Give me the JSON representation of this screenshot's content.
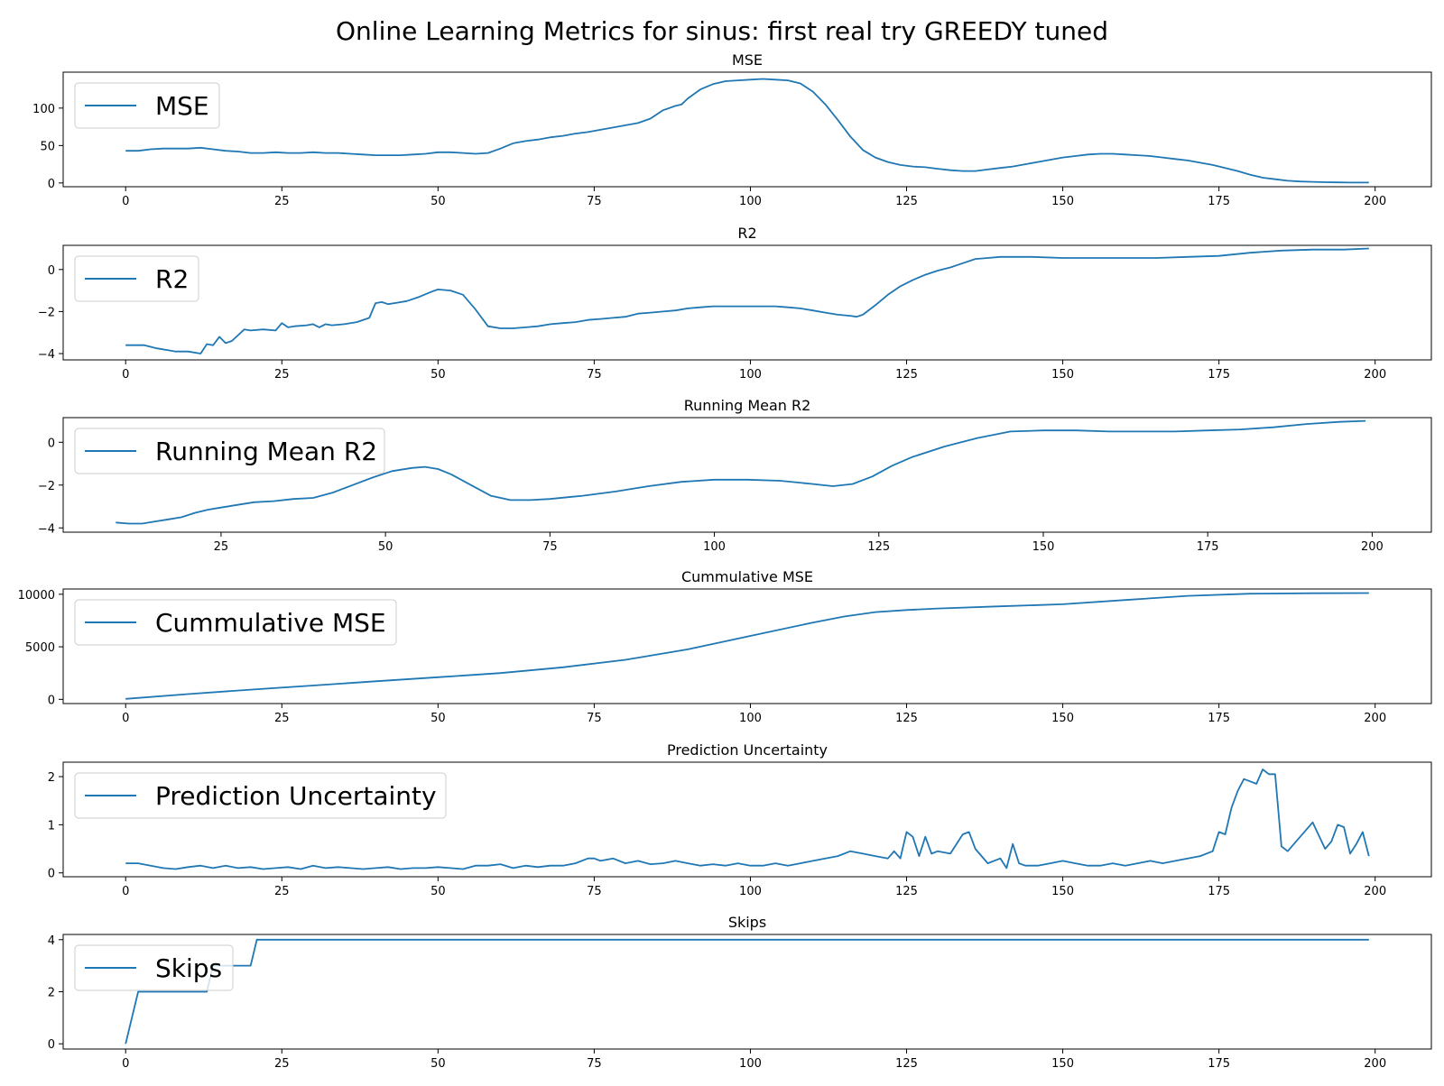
{
  "title": "Online Learning Metrics for sinus: first real try GREEDY tuned",
  "colors": {
    "series": "#1f77b4",
    "axis": "#000000",
    "legend_border": "#cccccc"
  },
  "chart_data": [
    {
      "type": "line",
      "title": "MSE",
      "xlabel": "",
      "ylabel": "",
      "xlim": [
        -10,
        209
      ],
      "ylim": [
        -5,
        148
      ],
      "xticks": [
        0,
        25,
        50,
        75,
        100,
        125,
        150,
        175,
        200
      ],
      "yticks": [
        0,
        50,
        100
      ],
      "ytick_labels": [
        "0",
        "50",
        "100"
      ],
      "legend": "top-left",
      "grid": false,
      "series": [
        {
          "name": "MSE",
          "x": [
            0,
            2,
            4,
            6,
            8,
            10,
            12,
            14,
            16,
            18,
            20,
            22,
            24,
            26,
            28,
            30,
            32,
            34,
            36,
            38,
            40,
            42,
            44,
            46,
            48,
            50,
            52,
            54,
            56,
            58,
            60,
            62,
            64,
            66,
            68,
            70,
            72,
            74,
            76,
            78,
            80,
            82,
            84,
            86,
            88,
            89,
            90,
            92,
            94,
            96,
            98,
            100,
            102,
            104,
            106,
            108,
            110,
            112,
            114,
            116,
            118,
            120,
            122,
            124,
            126,
            128,
            130,
            132,
            134,
            136,
            138,
            140,
            142,
            144,
            146,
            148,
            150,
            152,
            154,
            156,
            158,
            160,
            162,
            164,
            166,
            168,
            170,
            172,
            174,
            176,
            178,
            180,
            182,
            184,
            186,
            188,
            190,
            192,
            194,
            196,
            199
          ],
          "values": [
            43,
            43,
            45,
            46,
            46,
            46,
            47,
            45,
            43,
            42,
            40,
            40,
            41,
            40,
            40,
            41,
            40,
            40,
            39,
            38,
            37,
            37,
            37,
            38,
            39,
            41,
            41,
            40,
            39,
            40,
            46,
            53,
            56,
            58,
            61,
            63,
            66,
            68,
            71,
            74,
            77,
            80,
            86,
            97,
            103,
            105,
            113,
            125,
            132,
            136,
            137,
            138,
            139,
            138,
            137,
            133,
            122,
            105,
            84,
            62,
            44,
            34,
            28,
            24,
            22,
            21,
            19,
            17,
            16,
            16,
            18,
            20,
            22,
            25,
            28,
            31,
            34,
            36,
            38,
            39,
            39,
            38,
            37,
            36,
            34,
            32,
            30,
            27,
            24,
            20,
            16,
            11,
            7,
            5,
            3,
            2,
            1.5,
            1,
            0.8,
            0.6,
            0.5
          ]
        }
      ]
    },
    {
      "type": "line",
      "title": "R2",
      "xlabel": "",
      "ylabel": "",
      "xlim": [
        -10,
        209
      ],
      "ylim": [
        -4.3,
        1.15
      ],
      "xticks": [
        0,
        25,
        50,
        75,
        100,
        125,
        150,
        175,
        200
      ],
      "yticks": [
        -4,
        -2,
        0
      ],
      "ytick_labels": [
        "−4",
        "−2",
        "0"
      ],
      "legend": "top-left",
      "grid": false,
      "series": [
        {
          "name": "R2",
          "x": [
            0,
            3,
            5,
            7,
            8,
            10,
            12,
            13,
            14,
            15,
            16,
            17,
            19,
            20,
            22,
            24,
            25,
            26,
            27,
            29,
            30,
            31,
            32,
            33,
            35,
            37,
            39,
            40,
            41,
            42,
            43,
            45,
            47,
            49,
            50,
            52,
            54,
            56,
            58,
            60,
            62,
            64,
            66,
            68,
            70,
            72,
            74,
            76,
            78,
            80,
            82,
            84,
            86,
            88,
            90,
            92,
            94,
            96,
            98,
            100,
            102,
            104,
            106,
            108,
            110,
            112,
            114,
            116,
            117,
            118,
            120,
            122,
            124,
            126,
            128,
            130,
            132,
            134,
            136,
            138,
            140,
            145,
            150,
            155,
            160,
            165,
            170,
            175,
            180,
            185,
            190,
            195,
            199
          ],
          "values": [
            -3.6,
            -3.6,
            -3.75,
            -3.85,
            -3.9,
            -3.9,
            -4.0,
            -3.55,
            -3.6,
            -3.2,
            -3.5,
            -3.4,
            -2.85,
            -2.9,
            -2.85,
            -2.9,
            -2.55,
            -2.75,
            -2.7,
            -2.65,
            -2.6,
            -2.75,
            -2.6,
            -2.65,
            -2.6,
            -2.5,
            -2.3,
            -1.6,
            -1.55,
            -1.65,
            -1.6,
            -1.5,
            -1.3,
            -1.05,
            -0.95,
            -1.0,
            -1.2,
            -1.9,
            -2.7,
            -2.8,
            -2.8,
            -2.75,
            -2.7,
            -2.6,
            -2.55,
            -2.5,
            -2.4,
            -2.35,
            -2.3,
            -2.25,
            -2.1,
            -2.05,
            -2.0,
            -1.95,
            -1.85,
            -1.8,
            -1.75,
            -1.75,
            -1.75,
            -1.75,
            -1.75,
            -1.75,
            -1.8,
            -1.85,
            -1.95,
            -2.05,
            -2.15,
            -2.2,
            -2.25,
            -2.15,
            -1.7,
            -1.2,
            -0.8,
            -0.5,
            -0.25,
            -0.05,
            0.1,
            0.3,
            0.5,
            0.55,
            0.6,
            0.6,
            0.55,
            0.55,
            0.55,
            0.55,
            0.6,
            0.65,
            0.8,
            0.9,
            0.95,
            0.95,
            1.0
          ]
        }
      ]
    },
    {
      "type": "line",
      "title": "Running Mean R2",
      "xlabel": "",
      "ylabel": "",
      "xlim": [
        1,
        209
      ],
      "ylim": [
        -4.2,
        1.15
      ],
      "xticks": [
        25,
        50,
        75,
        100,
        125,
        150,
        175,
        200
      ],
      "yticks": [
        -4,
        -2,
        0
      ],
      "ytick_labels": [
        "−4",
        "−2",
        "0"
      ],
      "legend": "top-left",
      "grid": false,
      "series": [
        {
          "name": "Running Mean R2",
          "x": [
            9,
            11,
            13,
            15,
            17,
            19,
            21,
            23,
            25,
            27,
            30,
            33,
            36,
            39,
            42,
            45,
            48,
            51,
            54,
            56,
            58,
            60,
            63,
            66,
            69,
            72,
            75,
            80,
            85,
            90,
            95,
            100,
            105,
            110,
            115,
            118,
            121,
            124,
            127,
            130,
            135,
            140,
            145,
            150,
            155,
            160,
            165,
            170,
            175,
            180,
            185,
            190,
            195,
            199
          ],
          "values": [
            -3.75,
            -3.8,
            -3.8,
            -3.7,
            -3.6,
            -3.5,
            -3.3,
            -3.15,
            -3.05,
            -2.95,
            -2.8,
            -2.75,
            -2.65,
            -2.6,
            -2.35,
            -2.0,
            -1.65,
            -1.35,
            -1.2,
            -1.15,
            -1.25,
            -1.5,
            -2.0,
            -2.5,
            -2.7,
            -2.7,
            -2.65,
            -2.5,
            -2.3,
            -2.05,
            -1.85,
            -1.75,
            -1.75,
            -1.8,
            -1.95,
            -2.05,
            -1.95,
            -1.6,
            -1.1,
            -0.7,
            -0.2,
            0.2,
            0.5,
            0.55,
            0.55,
            0.5,
            0.5,
            0.5,
            0.55,
            0.6,
            0.7,
            0.85,
            0.95,
            1.0
          ]
        }
      ]
    },
    {
      "type": "line",
      "title": "Cummulative MSE",
      "xlabel": "",
      "ylabel": "",
      "xlim": [
        -10,
        209
      ],
      "ylim": [
        -400,
        10500
      ],
      "xticks": [
        0,
        25,
        50,
        75,
        100,
        125,
        150,
        175,
        200
      ],
      "yticks": [
        0,
        5000,
        10000
      ],
      "ytick_labels": [
        "0",
        "5000",
        "10000"
      ],
      "legend": "top-left",
      "grid": false,
      "series": [
        {
          "name": "Cummulative MSE",
          "x": [
            0,
            10,
            20,
            30,
            40,
            50,
            60,
            70,
            80,
            90,
            100,
            110,
            115,
            120,
            125,
            130,
            140,
            150,
            160,
            170,
            180,
            190,
            199
          ],
          "values": [
            43,
            500,
            920,
            1320,
            1720,
            2110,
            2500,
            3050,
            3760,
            4760,
            6040,
            7310,
            7880,
            8300,
            8500,
            8650,
            8850,
            9050,
            9450,
            9850,
            10050,
            10100,
            10110
          ]
        }
      ]
    },
    {
      "type": "line",
      "title": "Prediction Uncertainty",
      "xlabel": "",
      "ylabel": "",
      "xlim": [
        -10,
        209
      ],
      "ylim": [
        -0.08,
        2.3
      ],
      "xticks": [
        0,
        25,
        50,
        75,
        100,
        125,
        150,
        175,
        200
      ],
      "yticks": [
        0,
        1,
        2
      ],
      "ytick_labels": [
        "0",
        "1",
        "2"
      ],
      "legend": "top-left",
      "grid": false,
      "series": [
        {
          "name": "Prediction Uncertainty",
          "x": [
            0,
            2,
            4,
            6,
            8,
            10,
            12,
            14,
            16,
            18,
            20,
            22,
            24,
            26,
            28,
            30,
            32,
            34,
            36,
            38,
            40,
            42,
            44,
            46,
            48,
            50,
            52,
            54,
            56,
            58,
            60,
            62,
            64,
            66,
            68,
            70,
            72,
            74,
            75,
            76,
            78,
            80,
            82,
            84,
            86,
            88,
            90,
            92,
            94,
            96,
            98,
            100,
            102,
            104,
            106,
            108,
            110,
            112,
            114,
            116,
            118,
            120,
            122,
            123,
            124,
            125,
            126,
            127,
            128,
            129,
            130,
            132,
            134,
            135,
            136,
            138,
            140,
            141,
            142,
            143,
            144,
            146,
            148,
            150,
            152,
            154,
            156,
            158,
            160,
            162,
            164,
            166,
            168,
            170,
            172,
            174,
            175,
            176,
            177,
            178,
            179,
            180,
            181,
            182,
            183,
            184,
            185,
            186,
            187,
            190,
            192,
            193,
            194,
            195,
            196,
            197,
            198,
            199
          ],
          "values": [
            0.2,
            0.2,
            0.15,
            0.1,
            0.08,
            0.12,
            0.15,
            0.1,
            0.15,
            0.1,
            0.12,
            0.08,
            0.1,
            0.12,
            0.08,
            0.15,
            0.1,
            0.12,
            0.1,
            0.08,
            0.1,
            0.12,
            0.08,
            0.1,
            0.1,
            0.12,
            0.1,
            0.08,
            0.15,
            0.15,
            0.18,
            0.1,
            0.15,
            0.12,
            0.15,
            0.15,
            0.2,
            0.3,
            0.3,
            0.25,
            0.3,
            0.2,
            0.25,
            0.18,
            0.2,
            0.25,
            0.2,
            0.15,
            0.18,
            0.15,
            0.2,
            0.15,
            0.15,
            0.2,
            0.15,
            0.2,
            0.25,
            0.3,
            0.35,
            0.45,
            0.4,
            0.35,
            0.3,
            0.45,
            0.3,
            0.85,
            0.75,
            0.35,
            0.75,
            0.4,
            0.45,
            0.4,
            0.8,
            0.85,
            0.5,
            0.2,
            0.3,
            0.1,
            0.6,
            0.2,
            0.15,
            0.15,
            0.2,
            0.25,
            0.2,
            0.15,
            0.15,
            0.2,
            0.15,
            0.2,
            0.25,
            0.2,
            0.25,
            0.3,
            0.35,
            0.45,
            0.85,
            0.8,
            1.35,
            1.7,
            1.95,
            1.9,
            1.85,
            2.15,
            2.05,
            2.05,
            0.55,
            0.45,
            0.6,
            1.05,
            0.5,
            0.65,
            1.0,
            0.95,
            0.4,
            0.6,
            0.85,
            0.35
          ]
        }
      ]
    },
    {
      "type": "line",
      "title": "Skips",
      "xlabel": "",
      "ylabel": "",
      "xlim": [
        -10,
        209
      ],
      "ylim": [
        -0.2,
        4.2
      ],
      "xticks": [
        0,
        25,
        50,
        75,
        100,
        125,
        150,
        175,
        200
      ],
      "yticks": [
        0,
        2,
        4
      ],
      "ytick_labels": [
        "0",
        "2",
        "4"
      ],
      "legend": "top-left",
      "grid": false,
      "series": [
        {
          "name": "Skips",
          "x": [
            0,
            2,
            13,
            14,
            20,
            21,
            199
          ],
          "values": [
            0,
            2,
            2,
            3,
            3,
            4,
            4
          ]
        }
      ]
    }
  ]
}
